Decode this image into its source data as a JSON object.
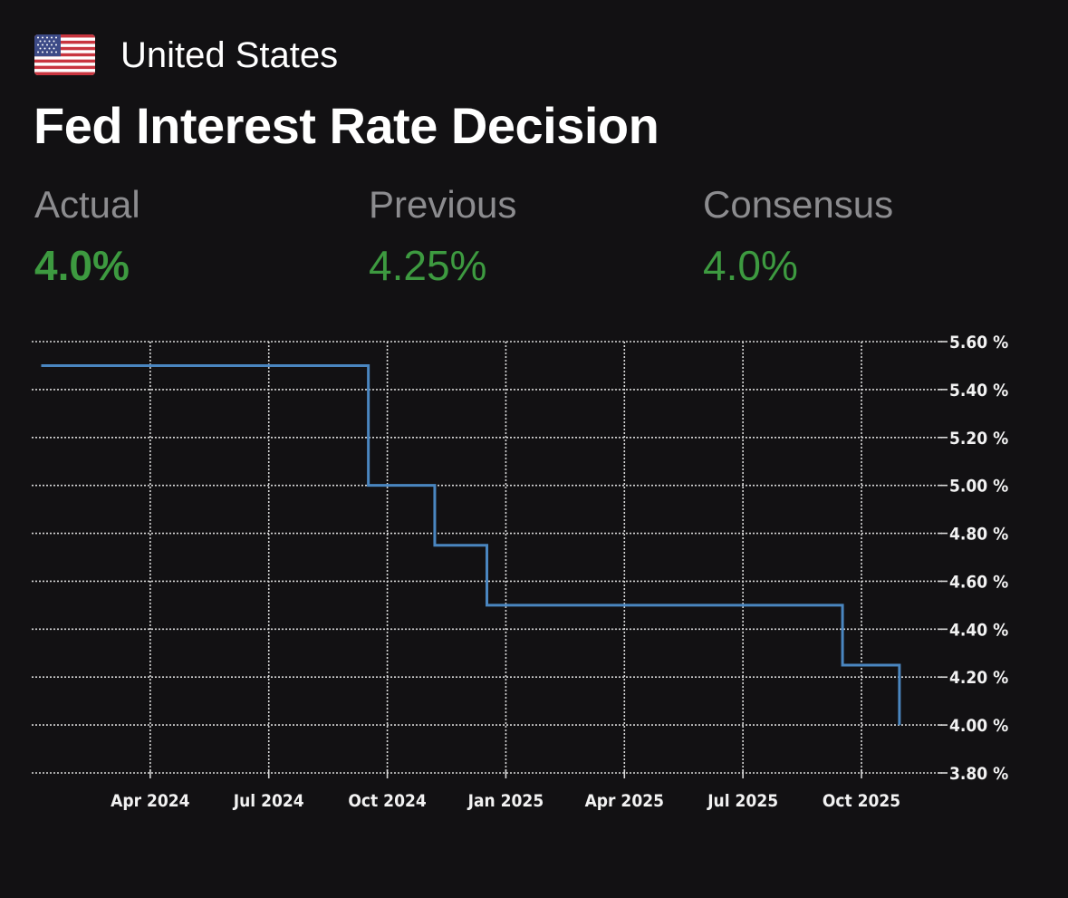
{
  "header": {
    "country": "United States",
    "flag_icon": "us-flag-icon",
    "title": "Fed Interest Rate Decision"
  },
  "stats": [
    {
      "label": "Actual",
      "value": "4.0%"
    },
    {
      "label": "Previous",
      "value": "4.25%"
    },
    {
      "label": "Consensus",
      "value": "4.0%"
    }
  ],
  "colors": {
    "background": "#121113",
    "value_green": "#3d9a40",
    "label_gray": "#8c8c8f",
    "line": "#4a86c0"
  },
  "chart_data": {
    "type": "line",
    "title": "",
    "xlabel": "",
    "ylabel": "",
    "step": true,
    "grid": true,
    "y_axis_position": "right",
    "xlim": [
      2024.0,
      2025.92
    ],
    "ylim": [
      3.8,
      5.6
    ],
    "x_ticks": [
      {
        "x": 2024.25,
        "label": "Apr 2024"
      },
      {
        "x": 2024.5,
        "label": "Jul 2024"
      },
      {
        "x": 2024.75,
        "label": "Oct 2024"
      },
      {
        "x": 2025.0,
        "label": "Jan 2025"
      },
      {
        "x": 2025.25,
        "label": "Apr 2025"
      },
      {
        "x": 2025.5,
        "label": "Jul 2025"
      },
      {
        "x": 2025.75,
        "label": "Oct 2025"
      }
    ],
    "y_ticks": [
      {
        "y": 5.6,
        "label": "5.60 %"
      },
      {
        "y": 5.4,
        "label": "5.40 %"
      },
      {
        "y": 5.2,
        "label": "5.20 %"
      },
      {
        "y": 5.0,
        "label": "5.00 %"
      },
      {
        "y": 4.8,
        "label": "4.80 %"
      },
      {
        "y": 4.6,
        "label": "4.60 %"
      },
      {
        "y": 4.4,
        "label": "4.40 %"
      },
      {
        "y": 4.2,
        "label": "4.20 %"
      },
      {
        "y": 4.0,
        "label": "4.00 %"
      },
      {
        "y": 3.8,
        "label": "3.80 %"
      }
    ],
    "series": [
      {
        "name": "Fed Interest Rate",
        "points": [
          {
            "x": 2024.02,
            "y": 5.5
          },
          {
            "x": 2024.71,
            "y": 5.0
          },
          {
            "x": 2024.85,
            "y": 4.75
          },
          {
            "x": 2024.96,
            "y": 4.5
          },
          {
            "x": 2025.71,
            "y": 4.25
          },
          {
            "x": 2025.83,
            "y": 4.0
          }
        ]
      }
    ]
  }
}
